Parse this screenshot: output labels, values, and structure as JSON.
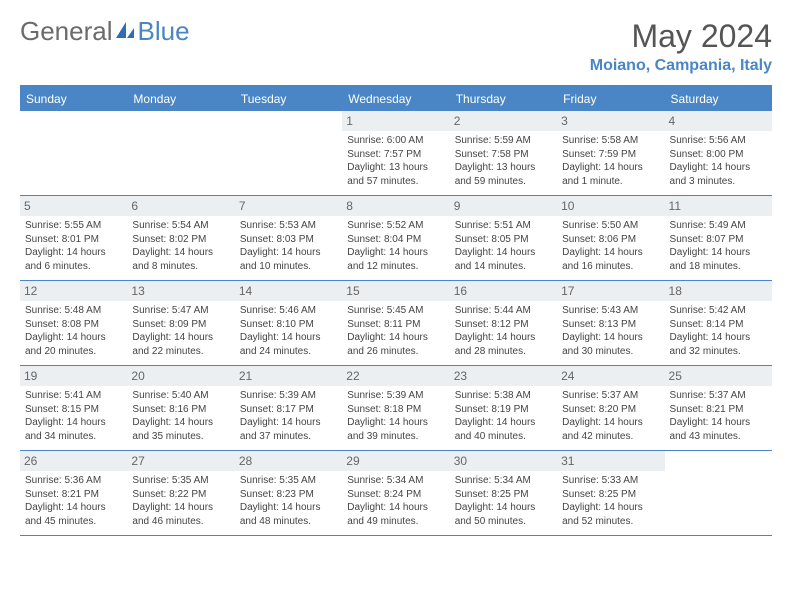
{
  "brand": {
    "part1": "General",
    "part2": "Blue"
  },
  "colors": {
    "accent": "#4a86c5",
    "logo_gray": "#6b6b6b",
    "text": "#444444",
    "num_bg": "#eceff1"
  },
  "title": "May 2024",
  "location": "Moiano, Campania, Italy",
  "day_names": [
    "Sunday",
    "Monday",
    "Tuesday",
    "Wednesday",
    "Thursday",
    "Friday",
    "Saturday"
  ],
  "weeks": [
    [
      null,
      null,
      null,
      {
        "n": "1",
        "sr": "Sunrise: 6:00 AM",
        "ss": "Sunset: 7:57 PM",
        "d1": "Daylight: 13 hours",
        "d2": "and 57 minutes."
      },
      {
        "n": "2",
        "sr": "Sunrise: 5:59 AM",
        "ss": "Sunset: 7:58 PM",
        "d1": "Daylight: 13 hours",
        "d2": "and 59 minutes."
      },
      {
        "n": "3",
        "sr": "Sunrise: 5:58 AM",
        "ss": "Sunset: 7:59 PM",
        "d1": "Daylight: 14 hours",
        "d2": "and 1 minute."
      },
      {
        "n": "4",
        "sr": "Sunrise: 5:56 AM",
        "ss": "Sunset: 8:00 PM",
        "d1": "Daylight: 14 hours",
        "d2": "and 3 minutes."
      }
    ],
    [
      {
        "n": "5",
        "sr": "Sunrise: 5:55 AM",
        "ss": "Sunset: 8:01 PM",
        "d1": "Daylight: 14 hours",
        "d2": "and 6 minutes."
      },
      {
        "n": "6",
        "sr": "Sunrise: 5:54 AM",
        "ss": "Sunset: 8:02 PM",
        "d1": "Daylight: 14 hours",
        "d2": "and 8 minutes."
      },
      {
        "n": "7",
        "sr": "Sunrise: 5:53 AM",
        "ss": "Sunset: 8:03 PM",
        "d1": "Daylight: 14 hours",
        "d2": "and 10 minutes."
      },
      {
        "n": "8",
        "sr": "Sunrise: 5:52 AM",
        "ss": "Sunset: 8:04 PM",
        "d1": "Daylight: 14 hours",
        "d2": "and 12 minutes."
      },
      {
        "n": "9",
        "sr": "Sunrise: 5:51 AM",
        "ss": "Sunset: 8:05 PM",
        "d1": "Daylight: 14 hours",
        "d2": "and 14 minutes."
      },
      {
        "n": "10",
        "sr": "Sunrise: 5:50 AM",
        "ss": "Sunset: 8:06 PM",
        "d1": "Daylight: 14 hours",
        "d2": "and 16 minutes."
      },
      {
        "n": "11",
        "sr": "Sunrise: 5:49 AM",
        "ss": "Sunset: 8:07 PM",
        "d1": "Daylight: 14 hours",
        "d2": "and 18 minutes."
      }
    ],
    [
      {
        "n": "12",
        "sr": "Sunrise: 5:48 AM",
        "ss": "Sunset: 8:08 PM",
        "d1": "Daylight: 14 hours",
        "d2": "and 20 minutes."
      },
      {
        "n": "13",
        "sr": "Sunrise: 5:47 AM",
        "ss": "Sunset: 8:09 PM",
        "d1": "Daylight: 14 hours",
        "d2": "and 22 minutes."
      },
      {
        "n": "14",
        "sr": "Sunrise: 5:46 AM",
        "ss": "Sunset: 8:10 PM",
        "d1": "Daylight: 14 hours",
        "d2": "and 24 minutes."
      },
      {
        "n": "15",
        "sr": "Sunrise: 5:45 AM",
        "ss": "Sunset: 8:11 PM",
        "d1": "Daylight: 14 hours",
        "d2": "and 26 minutes."
      },
      {
        "n": "16",
        "sr": "Sunrise: 5:44 AM",
        "ss": "Sunset: 8:12 PM",
        "d1": "Daylight: 14 hours",
        "d2": "and 28 minutes."
      },
      {
        "n": "17",
        "sr": "Sunrise: 5:43 AM",
        "ss": "Sunset: 8:13 PM",
        "d1": "Daylight: 14 hours",
        "d2": "and 30 minutes."
      },
      {
        "n": "18",
        "sr": "Sunrise: 5:42 AM",
        "ss": "Sunset: 8:14 PM",
        "d1": "Daylight: 14 hours",
        "d2": "and 32 minutes."
      }
    ],
    [
      {
        "n": "19",
        "sr": "Sunrise: 5:41 AM",
        "ss": "Sunset: 8:15 PM",
        "d1": "Daylight: 14 hours",
        "d2": "and 34 minutes."
      },
      {
        "n": "20",
        "sr": "Sunrise: 5:40 AM",
        "ss": "Sunset: 8:16 PM",
        "d1": "Daylight: 14 hours",
        "d2": "and 35 minutes."
      },
      {
        "n": "21",
        "sr": "Sunrise: 5:39 AM",
        "ss": "Sunset: 8:17 PM",
        "d1": "Daylight: 14 hours",
        "d2": "and 37 minutes."
      },
      {
        "n": "22",
        "sr": "Sunrise: 5:39 AM",
        "ss": "Sunset: 8:18 PM",
        "d1": "Daylight: 14 hours",
        "d2": "and 39 minutes."
      },
      {
        "n": "23",
        "sr": "Sunrise: 5:38 AM",
        "ss": "Sunset: 8:19 PM",
        "d1": "Daylight: 14 hours",
        "d2": "and 40 minutes."
      },
      {
        "n": "24",
        "sr": "Sunrise: 5:37 AM",
        "ss": "Sunset: 8:20 PM",
        "d1": "Daylight: 14 hours",
        "d2": "and 42 minutes."
      },
      {
        "n": "25",
        "sr": "Sunrise: 5:37 AM",
        "ss": "Sunset: 8:21 PM",
        "d1": "Daylight: 14 hours",
        "d2": "and 43 minutes."
      }
    ],
    [
      {
        "n": "26",
        "sr": "Sunrise: 5:36 AM",
        "ss": "Sunset: 8:21 PM",
        "d1": "Daylight: 14 hours",
        "d2": "and 45 minutes."
      },
      {
        "n": "27",
        "sr": "Sunrise: 5:35 AM",
        "ss": "Sunset: 8:22 PM",
        "d1": "Daylight: 14 hours",
        "d2": "and 46 minutes."
      },
      {
        "n": "28",
        "sr": "Sunrise: 5:35 AM",
        "ss": "Sunset: 8:23 PM",
        "d1": "Daylight: 14 hours",
        "d2": "and 48 minutes."
      },
      {
        "n": "29",
        "sr": "Sunrise: 5:34 AM",
        "ss": "Sunset: 8:24 PM",
        "d1": "Daylight: 14 hours",
        "d2": "and 49 minutes."
      },
      {
        "n": "30",
        "sr": "Sunrise: 5:34 AM",
        "ss": "Sunset: 8:25 PM",
        "d1": "Daylight: 14 hours",
        "d2": "and 50 minutes."
      },
      {
        "n": "31",
        "sr": "Sunrise: 5:33 AM",
        "ss": "Sunset: 8:25 PM",
        "d1": "Daylight: 14 hours",
        "d2": "and 52 minutes."
      },
      null
    ]
  ]
}
